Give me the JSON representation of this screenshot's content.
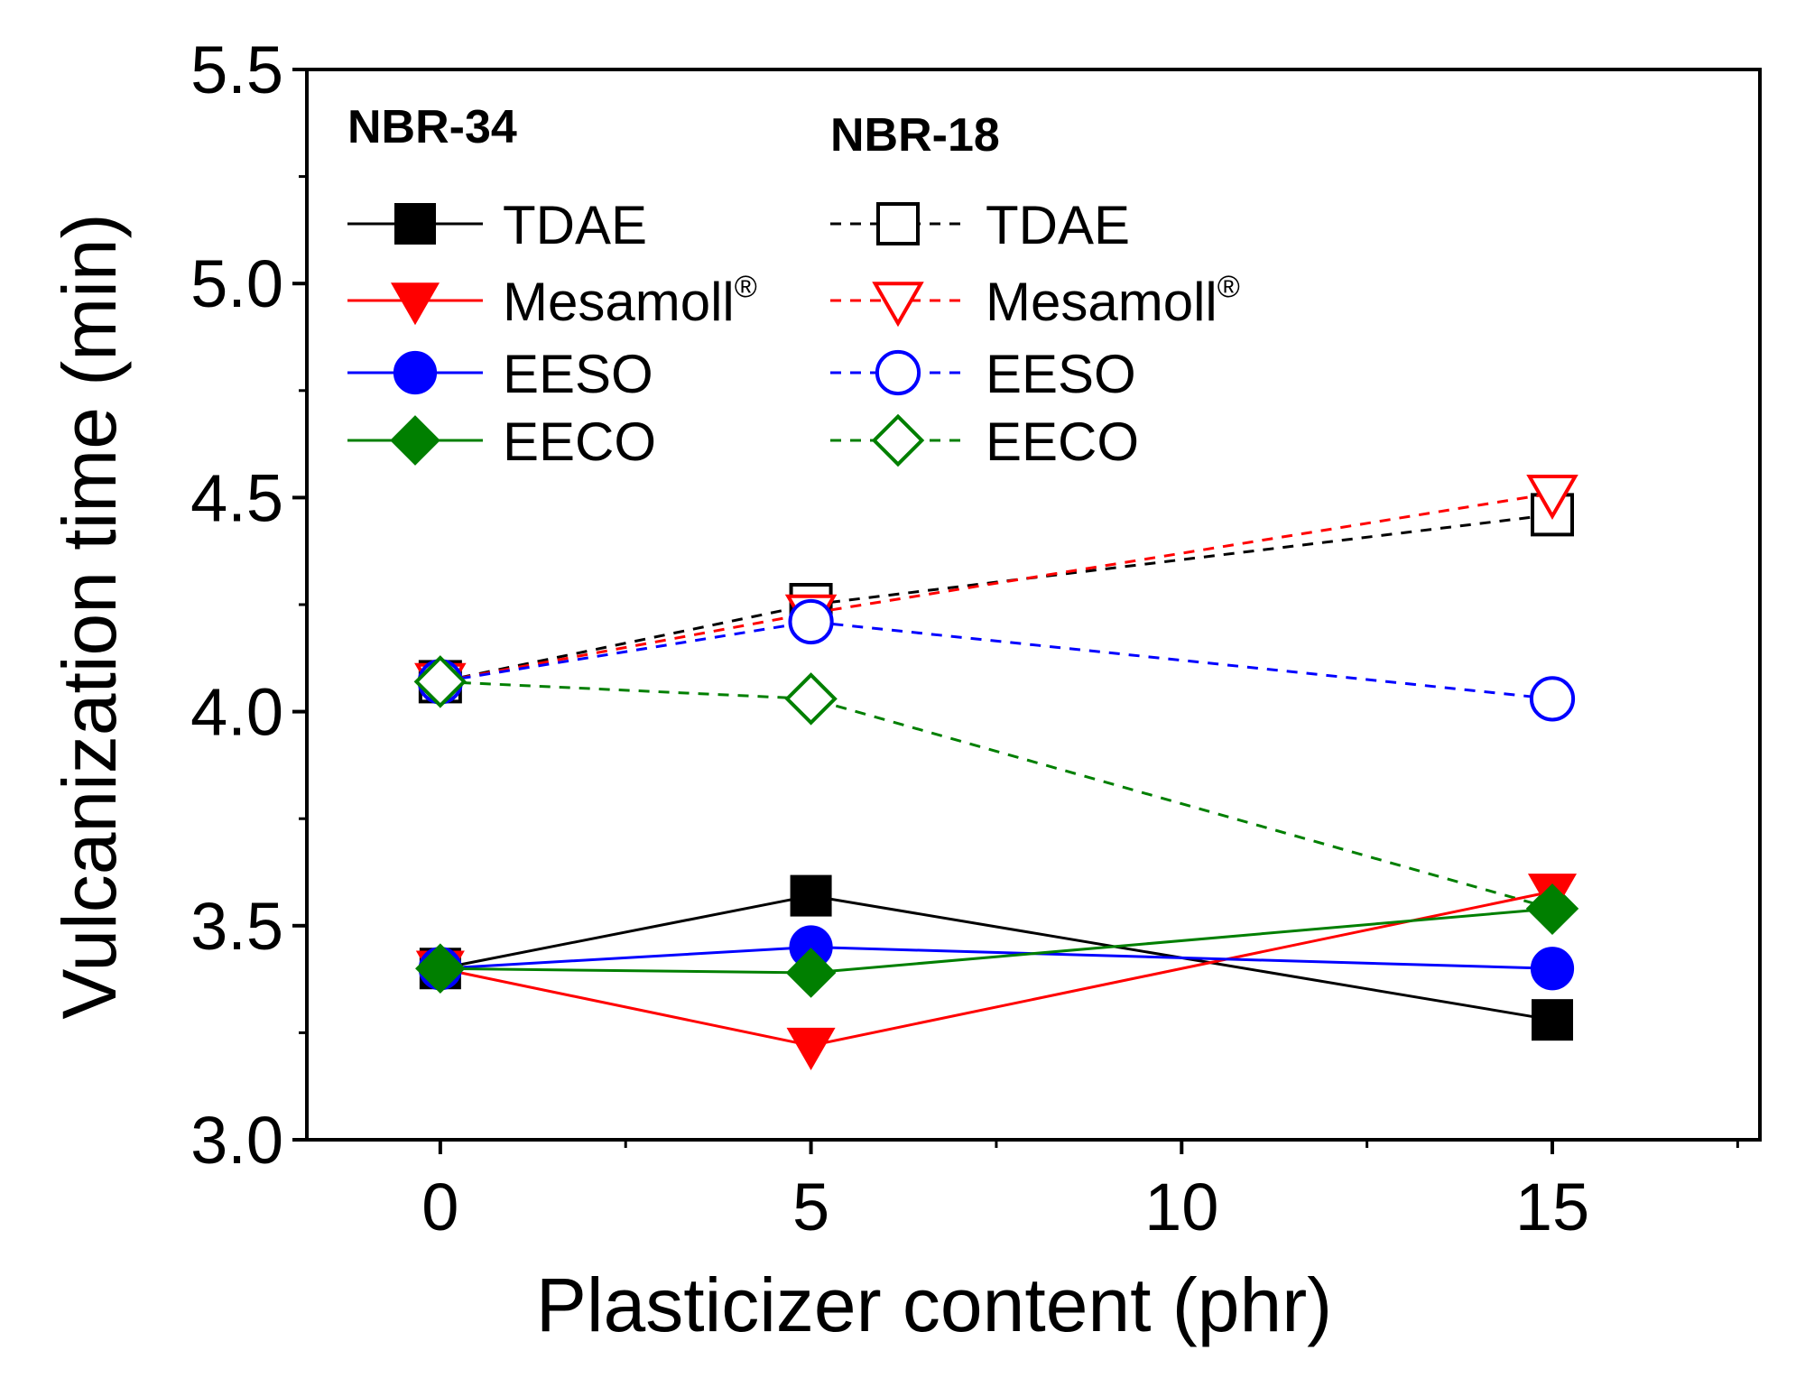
{
  "chart_data": {
    "type": "line",
    "title": "",
    "xlabel": "Plasticizer content (phr)",
    "ylabel": "Vulcanization time (min)",
    "xlim": [
      -1.8,
      17.8
    ],
    "ylim": [
      3.0,
      5.5
    ],
    "x_ticks": [
      0,
      5,
      10,
      15
    ],
    "x_tick_labels": [
      "0",
      "5",
      "10",
      "15"
    ],
    "x_minor_ticks": [
      2.5,
      7.5,
      12.5,
      17.5
    ],
    "y_ticks": [
      3.0,
      3.5,
      4.0,
      4.5,
      5.0,
      5.5
    ],
    "y_tick_labels": [
      "3.0",
      "3.5",
      "4.0",
      "4.5",
      "5.0",
      "5.5"
    ],
    "y_minor_ticks": [
      3.25,
      3.75,
      4.25,
      4.75,
      5.25
    ],
    "grid": false,
    "legend_placement": "top-left",
    "legend_groups": [
      {
        "title": "NBR-34",
        "series_names": [
          "NBR-34 TDAE",
          "NBR-34 Mesamoll",
          "NBR-34 EESO",
          "NBR-34 EECO"
        ]
      },
      {
        "title": "NBR-18",
        "series_names": [
          "NBR-18 TDAE",
          "NBR-18 Mesamoll",
          "NBR-18 EESO",
          "NBR-18 EECO"
        ]
      }
    ],
    "series": [
      {
        "name": "NBR-34 TDAE",
        "label": "TDAE",
        "x": [
          0,
          5,
          15
        ],
        "values": [
          3.4,
          3.57,
          3.28
        ],
        "color": "#000000",
        "marker": "square",
        "filled": true,
        "dashed": false
      },
      {
        "name": "NBR-34 Mesamoll",
        "label": "Mesamoll",
        "label_sup": "®",
        "x": [
          0,
          5,
          15
        ],
        "values": [
          3.4,
          3.22,
          3.58
        ],
        "color": "#ff0000",
        "marker": "triangle-down",
        "filled": true,
        "dashed": false
      },
      {
        "name": "NBR-34 EESO",
        "label": "EESO",
        "x": [
          0,
          5,
          15
        ],
        "values": [
          3.4,
          3.45,
          3.4
        ],
        "color": "#0000ff",
        "marker": "circle",
        "filled": true,
        "dashed": false
      },
      {
        "name": "NBR-34 EECO",
        "label": "EECO",
        "x": [
          0,
          5,
          15
        ],
        "values": [
          3.4,
          3.39,
          3.54
        ],
        "color": "#007f00",
        "marker": "diamond",
        "filled": true,
        "dashed": false
      },
      {
        "name": "NBR-18 TDAE",
        "label": "TDAE",
        "x": [
          0,
          5,
          15
        ],
        "values": [
          4.07,
          4.25,
          4.46
        ],
        "color": "#000000",
        "marker": "square",
        "filled": false,
        "dashed": true
      },
      {
        "name": "NBR-18 Mesamoll",
        "label": "Mesamoll",
        "label_sup": "®",
        "x": [
          0,
          5,
          15
        ],
        "values": [
          4.07,
          4.23,
          4.51
        ],
        "color": "#ff0000",
        "marker": "triangle-down",
        "filled": false,
        "dashed": true
      },
      {
        "name": "NBR-18 EESO",
        "label": "EESO",
        "x": [
          0,
          5,
          15
        ],
        "values": [
          4.07,
          4.21,
          4.03
        ],
        "color": "#0000ff",
        "marker": "circle",
        "filled": false,
        "dashed": true
      },
      {
        "name": "NBR-18 EECO",
        "label": "EECO",
        "x": [
          0,
          5,
          15
        ],
        "values": [
          4.07,
          4.03,
          3.54
        ],
        "color": "#007f00",
        "marker": "diamond",
        "filled": false,
        "dashed": true
      }
    ]
  }
}
